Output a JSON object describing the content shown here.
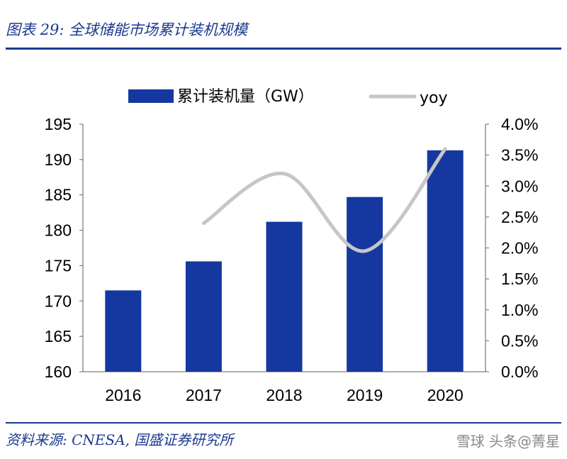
{
  "header": {
    "title": "图表 29:  全球储能市场累计装机规模"
  },
  "footer": {
    "source": "资料来源:  CNESA,  国盛证券研究所",
    "watermark": "雪球 头条@菁星"
  },
  "colors": {
    "bar": "#1538a0",
    "line": "#c6c6c6",
    "brand": "#1b3a8f"
  },
  "chart_data": {
    "type": "bar",
    "categories": [
      "2016",
      "2017",
      "2018",
      "2019",
      "2020"
    ],
    "series": [
      {
        "name": "累计装机量（GW）",
        "type": "bar",
        "axis": "left",
        "values": [
          171.5,
          175.6,
          181.2,
          184.7,
          191.3
        ]
      },
      {
        "name": "yoy",
        "type": "line",
        "axis": "right",
        "values": [
          null,
          0.024,
          0.032,
          0.0195,
          0.036
        ]
      }
    ],
    "y_left": {
      "min": 160,
      "max": 195,
      "ticks": [
        "160",
        "165",
        "170",
        "175",
        "180",
        "185",
        "190",
        "195"
      ]
    },
    "y_right": {
      "min": 0,
      "max": 0.04,
      "ticks": [
        "0.0%",
        "0.5%",
        "1.0%",
        "1.5%",
        "2.0%",
        "2.5%",
        "3.0%",
        "3.5%",
        "4.0%"
      ]
    },
    "legend_position": "top",
    "grid": false
  }
}
